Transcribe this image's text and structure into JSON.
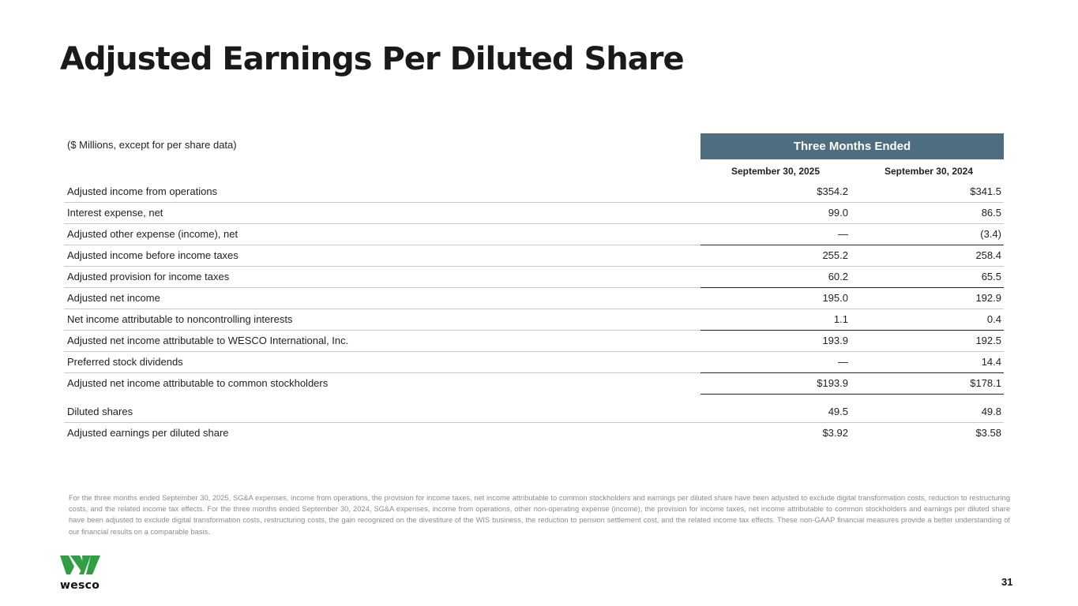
{
  "title": "Adjusted Earnings Per Diluted Share",
  "table": {
    "units_label": "($ Millions, except for per share data)",
    "period_header": "Three Months Ended",
    "columns": [
      "September 30, 2025",
      "September 30, 2024"
    ],
    "rows": [
      {
        "label": "Adjusted income from operations",
        "v2025": "$354.2",
        "v2024": "$341.5"
      },
      {
        "label": "Interest expense, net",
        "v2025": "99.0",
        "v2024": "86.5"
      },
      {
        "label": "Adjusted other expense (income), net",
        "v2025": "—",
        "v2024": "(3.4)"
      },
      {
        "label": "Adjusted income before income taxes",
        "v2025": "255.2",
        "v2024": "258.4"
      },
      {
        "label": "Adjusted provision for income taxes",
        "v2025": "60.2",
        "v2024": "65.5"
      },
      {
        "label": "Adjusted net income",
        "v2025": "195.0",
        "v2024": "192.9"
      },
      {
        "label": "Net income attributable to noncontrolling interests",
        "v2025": "1.1",
        "v2024": "0.4"
      },
      {
        "label": "Adjusted net income attributable to WESCO International, Inc.",
        "v2025": "193.9",
        "v2024": "192.5"
      },
      {
        "label": "Preferred stock dividends",
        "v2025": "—",
        "v2024": "14.4"
      },
      {
        "label": "Adjusted net income attributable to common stockholders",
        "v2025": "$193.9",
        "v2024": "$178.1"
      },
      {
        "label": "Diluted shares",
        "v2025": "49.5",
        "v2024": "49.8"
      },
      {
        "label": "Adjusted earnings per diluted share",
        "v2025": "$3.92",
        "v2024": "$3.58"
      }
    ]
  },
  "footnote": "For the three months ended September 30, 2025, SG&A expenses, income from operations, the provision for income taxes, net income attributable to common stockholders and earnings per diluted share have been adjusted to exclude digital transformation costs, reduction to restructuring costs, and the related income tax effects. For the three months ended September 30, 2024, SG&A expenses, income from operations, other non-operating expense (income), the provision for income taxes, net income attributable to common stockholders and earnings per diluted share have been adjusted to exclude digital transformation costs, restructuring costs, the gain recognized on the divestiture of the WIS business, the reduction to pension settlement cost, and the related income tax effects. These non-GAAP financial measures provide a better understanding of our financial results on a comparable basis.",
  "logo": {
    "wordmark": "wesco",
    "color": "#2f9e44"
  },
  "page_number": "31",
  "colors": {
    "header_band": "#4e6e80",
    "logo_green": "#2f9e44"
  }
}
